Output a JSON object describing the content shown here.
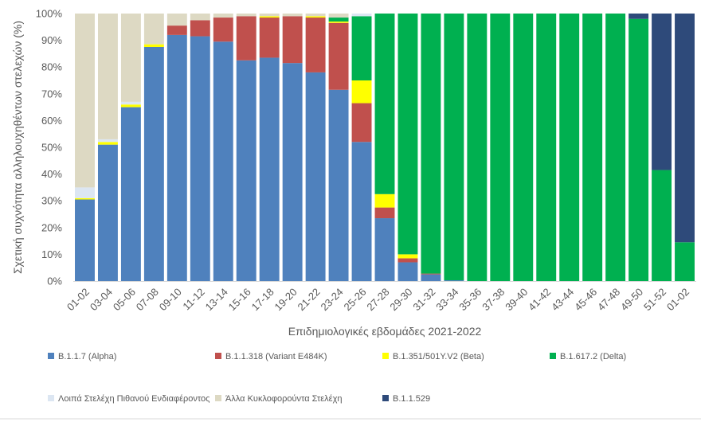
{
  "chart_data": {
    "type": "bar",
    "stacked": true,
    "xlabel": "Επιδημιολογικές εβδομάδες 2021-2022",
    "ylabel": "Σχετική συχνότητα αλληλουχηθέντων στελεχών (%)",
    "ylim": [
      0,
      100
    ],
    "yticks": [
      "0%",
      "10%",
      "20%",
      "30%",
      "40%",
      "50%",
      "60%",
      "70%",
      "80%",
      "90%",
      "100%"
    ],
    "grid": false,
    "legend_position": "bottom",
    "categories": [
      "01-02",
      "03-04",
      "05-06",
      "07-08",
      "09-10",
      "11-12",
      "13-14",
      "15-16",
      "17-18",
      "19-20",
      "21-22",
      "23-24",
      "25-26",
      "27-28",
      "29-30",
      "31-32",
      "33-34",
      "35-36",
      "37-38",
      "39-40",
      "41-42",
      "43-44",
      "45-46",
      "47-48",
      "49-50",
      "51-52",
      "01-02"
    ],
    "series": [
      {
        "name": "B.1.1.7 (Alpha)",
        "color": "#4F81BD",
        "values": [
          30.5,
          51,
          65,
          87.5,
          92,
          91.5,
          89.5,
          82.5,
          83.5,
          81.5,
          78,
          71.5,
          52,
          23.5,
          7,
          2.5,
          0.3,
          0,
          0,
          0,
          0,
          0,
          0,
          0,
          0,
          0,
          0
        ]
      },
      {
        "name": "B.1.1.318 (Variant E484K)",
        "color": "#C0504D",
        "values": [
          0,
          0,
          0,
          0,
          3.5,
          6,
          9,
          16.5,
          15,
          17.5,
          20.5,
          25,
          14.5,
          4,
          1.5,
          0.3,
          0,
          0,
          0,
          0,
          0,
          0,
          0,
          0,
          0,
          0,
          0
        ]
      },
      {
        "name": "B.1.351/501Y.V2 (Beta)",
        "color": "#FFFF00",
        "values": [
          0.5,
          1,
          1,
          1,
          0,
          0,
          0,
          0,
          0.5,
          0,
          0.5,
          0.5,
          8.5,
          5,
          1.5,
          0,
          0,
          0,
          0,
          0,
          0,
          0,
          0,
          0,
          0,
          0,
          0
        ]
      },
      {
        "name": "B.1.617.2 (Delta)",
        "color": "#00B050",
        "values": [
          0,
          0,
          0,
          0,
          0,
          0,
          0,
          0,
          0,
          0,
          0,
          1.5,
          24,
          67.5,
          90,
          97.2,
          99.7,
          100,
          100,
          100,
          100,
          100,
          100,
          100,
          98,
          41.5,
          14.5
        ]
      },
      {
        "name": "Λοιπά Στελέχη Πιθανού Ενδιαφέροντος",
        "color": "#DCE6F2",
        "values": [
          4,
          1,
          1,
          0,
          0,
          0,
          0,
          0,
          0,
          0,
          0,
          0,
          1,
          0,
          0,
          0,
          0,
          0,
          0,
          0,
          0,
          0,
          0,
          0,
          0,
          0,
          0
        ]
      },
      {
        "name": "Άλλα Κυκλοφορούντα Στελέχη",
        "color": "#DDD9C3",
        "values": [
          65,
          47,
          33,
          11.5,
          4.5,
          2.5,
          1.5,
          1,
          1,
          1,
          1,
          1.5,
          0,
          0,
          0,
          0,
          0,
          0,
          0,
          0,
          0,
          0,
          0,
          0,
          0,
          0,
          0
        ]
      },
      {
        "name": "B.1.1.529",
        "color": "#2E4A7A",
        "values": [
          0,
          0,
          0,
          0,
          0,
          0,
          0,
          0,
          0,
          0,
          0,
          0,
          0,
          0,
          0,
          0,
          0,
          0,
          0,
          0,
          0,
          0,
          0,
          0,
          2,
          58.5,
          85.5
        ]
      }
    ]
  }
}
